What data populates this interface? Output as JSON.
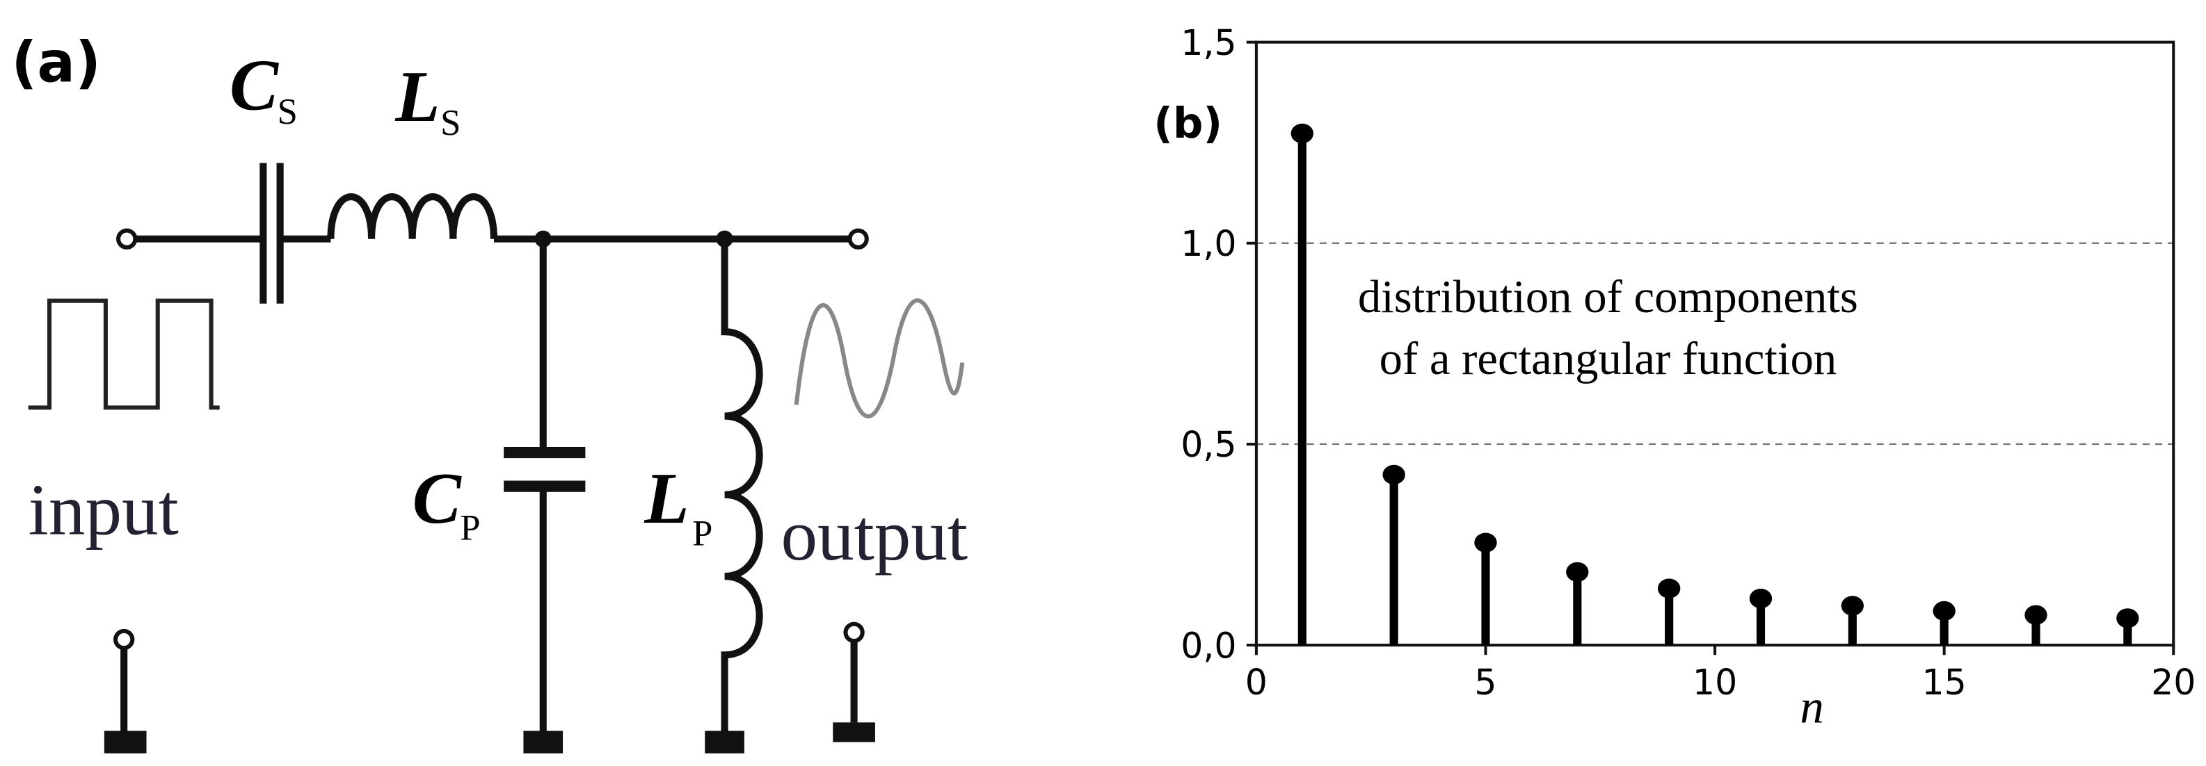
{
  "diagram": {
    "panel_label": "(a)",
    "components": [
      {
        "symbol": "C",
        "subscript": "S"
      },
      {
        "symbol": "L",
        "subscript": "S"
      },
      {
        "symbol": "C",
        "subscript": "P"
      },
      {
        "symbol": "L",
        "subscript": "P"
      }
    ],
    "input_label": "input",
    "output_label": "output"
  },
  "chart_data": {
    "type": "stem",
    "panel_label": "(b)",
    "annotation": [
      "distribution of components",
      "of a rectangular function"
    ],
    "xlabel": "n",
    "x": [
      1,
      3,
      5,
      7,
      9,
      11,
      13,
      15,
      17,
      19
    ],
    "values": [
      1.273,
      0.424,
      0.255,
      0.182,
      0.141,
      0.116,
      0.098,
      0.085,
      0.075,
      0.067
    ],
    "color": "#000000",
    "xlim": [
      0,
      20
    ],
    "xticks": [
      0,
      5,
      10,
      15,
      20
    ],
    "ylim": [
      0,
      1.5
    ],
    "yticks": [
      {
        "value": 0,
        "label": "0,0"
      },
      {
        "value": 0.5,
        "label": "0,5"
      },
      {
        "value": 1.0,
        "label": "1,0"
      },
      {
        "value": 1.5,
        "label": "1,5"
      }
    ],
    "grid": true
  }
}
